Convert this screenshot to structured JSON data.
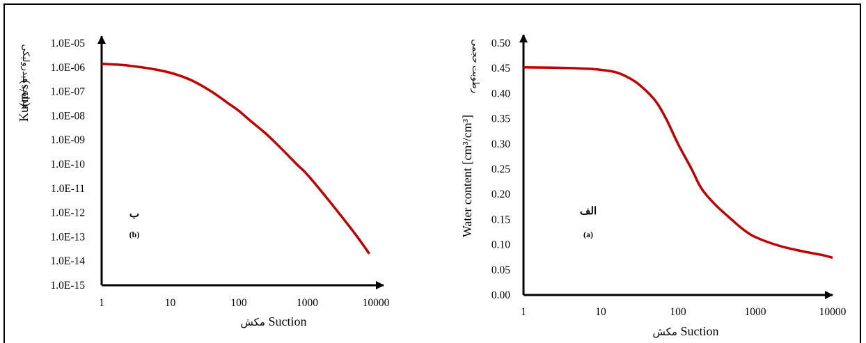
{
  "chart_data": [
    {
      "id": "left",
      "type": "line",
      "panel_label": "ب",
      "panel_sub": "(b)",
      "xlabel_fa": "مکش",
      "xlabel_en": "Suction",
      "ylabel_en": "Ku(m/s)",
      "ylabel_fa": "هدایت هیدرولیکی",
      "x_scale": "log",
      "y_scale": "log",
      "xlim": [
        1,
        10000
      ],
      "ylim": [
        1e-15,
        1e-05
      ],
      "x_ticks": [
        "1",
        "10",
        "100",
        "1000",
        "10000"
      ],
      "y_ticks": [
        "1.0E-15",
        "1.0E-14",
        "1.0E-13",
        "1.0E-12",
        "1.0E-11",
        "1.0E-10",
        "1.0E-09",
        "1.0E-08",
        "1.0E-07",
        "1.0E-06",
        "1.0E-05"
      ],
      "grid": false,
      "line_color": "#c00000",
      "series": [
        {
          "x": [
            1,
            2,
            3,
            5,
            10,
            20,
            40,
            70,
            100,
            150,
            250,
            400,
            700,
            1000,
            2000,
            5000,
            8000
          ],
          "y": [
            1.4e-06,
            1.25e-06,
            1.1e-06,
            9e-07,
            6e-07,
            3e-07,
            1e-07,
            3.3e-08,
            1.6e-08,
            6e-09,
            1.8e-09,
            5e-10,
            1e-10,
            3.7e-11,
            3.5e-12,
            1.3e-13,
            2e-14
          ]
        }
      ]
    },
    {
      "id": "right",
      "type": "line",
      "panel_label": "الف",
      "panel_sub": "(a)",
      "xlabel_fa": "مکش",
      "xlabel_en": "Suction",
      "ylabel_en": "Water content [cm³/cm³]",
      "ylabel_fa": "رطوبت حجمی",
      "x_scale": "log",
      "y_scale": "linear",
      "xlim": [
        1,
        10000
      ],
      "ylim": [
        0,
        0.5
      ],
      "x_ticks": [
        "1",
        "10",
        "100",
        "1000",
        "10000"
      ],
      "y_ticks": [
        "0.00",
        "0.05",
        "0.10",
        "0.15",
        "0.20",
        "0.25",
        "0.30",
        "0.35",
        "0.40",
        "0.45",
        "0.50"
      ],
      "grid": false,
      "line_color": "#c00000",
      "series": [
        {
          "x": [
            1,
            3,
            7,
            10,
            15,
            20,
            30,
            50,
            70,
            100,
            150,
            200,
            300,
            500,
            700,
            1000,
            2000,
            4000,
            7000,
            10000
          ],
          "y": [
            0.452,
            0.451,
            0.449,
            0.447,
            0.443,
            0.436,
            0.42,
            0.387,
            0.35,
            0.3,
            0.25,
            0.212,
            0.18,
            0.149,
            0.13,
            0.115,
            0.098,
            0.087,
            0.08,
            0.074
          ]
        }
      ]
    }
  ]
}
